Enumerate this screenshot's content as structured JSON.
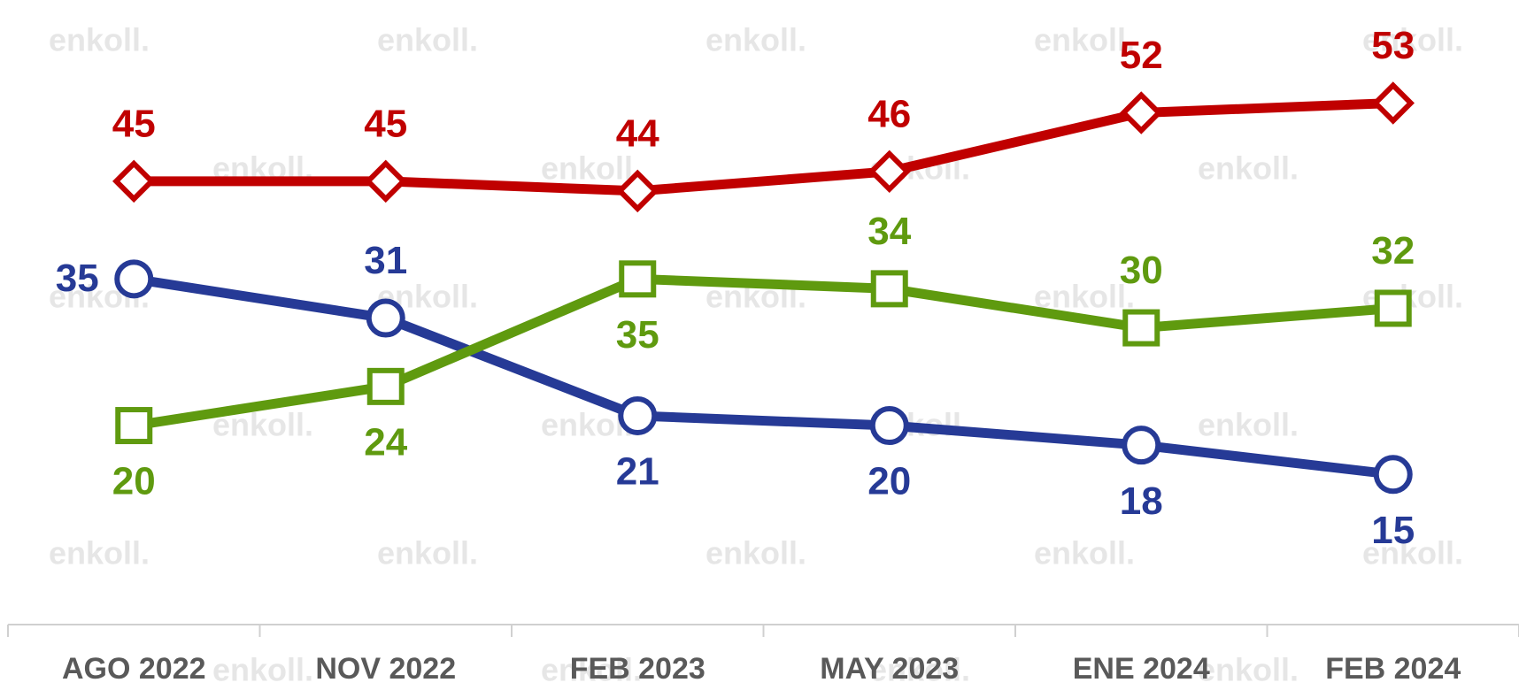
{
  "chart_data": {
    "type": "line",
    "watermark": "enkoll.",
    "categories": [
      "AGO 2022",
      "NOV 2022",
      "FEB 2023",
      "MAY 2023",
      "ENE 2024",
      "FEB 2024"
    ],
    "series": [
      {
        "color": "#c00000",
        "marker": "diamond",
        "values": [
          45,
          45,
          44,
          46,
          52,
          53
        ]
      },
      {
        "color": "#263a96",
        "marker": "circle",
        "values": [
          35,
          31,
          21,
          20,
          18,
          15
        ]
      },
      {
        "color": "#5f9a0f",
        "marker": "square",
        "values": [
          20,
          24,
          35,
          34,
          30,
          32
        ]
      }
    ],
    "ylim": [
      0,
      63
    ]
  }
}
